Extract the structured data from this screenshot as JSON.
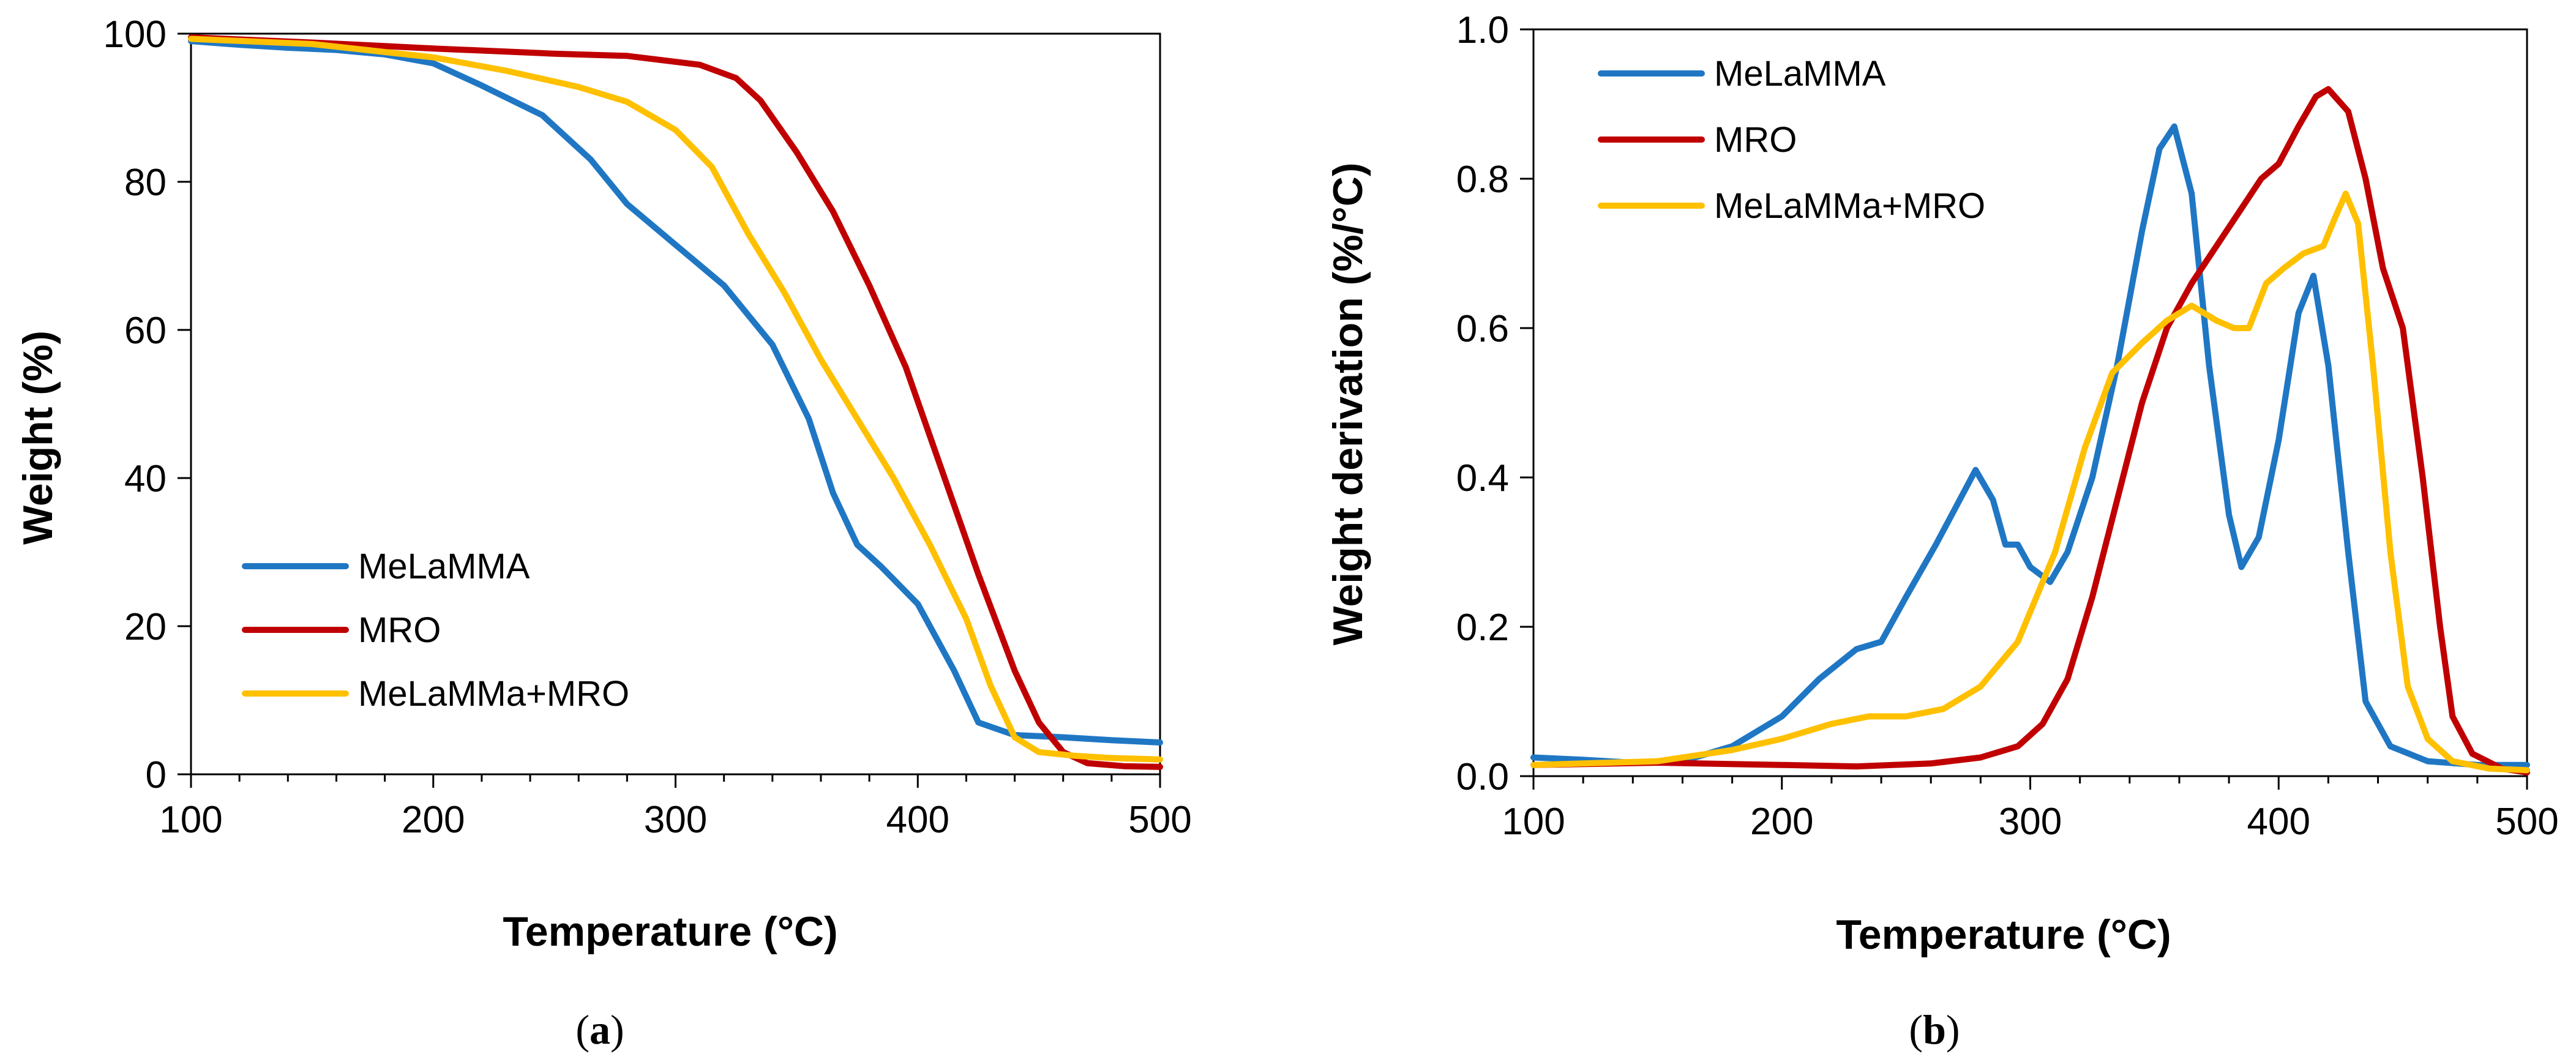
{
  "chart_data": [
    {
      "id": "a",
      "type": "line",
      "caption_letter": "a",
      "title": "",
      "xlabel": "Temperature (°C)",
      "ylabel": "Weight (%)",
      "xlim": [
        100,
        500
      ],
      "ylim": [
        0,
        100
      ],
      "xticks": [
        100,
        200,
        300,
        400,
        500
      ],
      "yticks": [
        0,
        20,
        40,
        60,
        80,
        100
      ],
      "xtick_labels": [
        "100",
        "200",
        "300",
        "400",
        "500"
      ],
      "ytick_labels": [
        "0",
        "20",
        "40",
        "60",
        "80",
        "100"
      ],
      "grid": false,
      "legend_position": "lower-left",
      "series": [
        {
          "name": "MeLaMMA",
          "color": "#1f77c4",
          "points": [
            [
              100,
              99
            ],
            [
              120,
              98.5
            ],
            [
              140,
              98.1
            ],
            [
              160,
              97.8
            ],
            [
              180,
              97.2
            ],
            [
              200,
              96
            ],
            [
              220,
              93
            ],
            [
              245,
              89
            ],
            [
              265,
              83
            ],
            [
              280,
              77
            ],
            [
              300,
              71.5
            ],
            [
              320,
              66
            ],
            [
              340,
              58
            ],
            [
              355,
              48
            ],
            [
              365,
              38
            ],
            [
              375,
              31
            ],
            [
              385,
              28
            ],
            [
              400,
              23
            ],
            [
              415,
              14
            ],
            [
              425,
              7
            ],
            [
              440,
              5.3
            ],
            [
              460,
              5
            ],
            [
              480,
              4.6
            ],
            [
              500,
              4.3
            ]
          ]
        },
        {
          "name": "MRO",
          "color": "#c00000",
          "points": [
            [
              100,
              99.5
            ],
            [
              150,
              98.8
            ],
            [
              200,
              98
            ],
            [
              250,
              97.3
            ],
            [
              280,
              97
            ],
            [
              310,
              95.8
            ],
            [
              325,
              94
            ],
            [
              335,
              91
            ],
            [
              350,
              84
            ],
            [
              365,
              76
            ],
            [
              380,
              66
            ],
            [
              395,
              55
            ],
            [
              410,
              41
            ],
            [
              425,
              27
            ],
            [
              440,
              14
            ],
            [
              450,
              7
            ],
            [
              460,
              3
            ],
            [
              470,
              1.5
            ],
            [
              485,
              1.1
            ],
            [
              500,
              1
            ]
          ]
        },
        {
          "name": "MeLaMMa+MRO",
          "color": "#ffc000",
          "points": [
            [
              100,
              99.3
            ],
            [
              150,
              98.6
            ],
            [
              200,
              96.8
            ],
            [
              230,
              95
            ],
            [
              260,
              92.8
            ],
            [
              280,
              90.8
            ],
            [
              300,
              87
            ],
            [
              315,
              82
            ],
            [
              330,
              73
            ],
            [
              345,
              65
            ],
            [
              360,
              56
            ],
            [
              375,
              48
            ],
            [
              390,
              40
            ],
            [
              405,
              31
            ],
            [
              420,
              21
            ],
            [
              430,
              12
            ],
            [
              440,
              5
            ],
            [
              450,
              3
            ],
            [
              465,
              2.5
            ],
            [
              480,
              2.2
            ],
            [
              500,
              2
            ]
          ]
        }
      ]
    },
    {
      "id": "b",
      "type": "line",
      "caption_letter": "b",
      "title": "",
      "xlabel": "Temperature (°C)",
      "ylabel": "Weight derivation (%/°C)",
      "xlim": [
        100,
        500
      ],
      "ylim": [
        0,
        1.0
      ],
      "xticks": [
        100,
        200,
        300,
        400,
        500
      ],
      "yticks": [
        0,
        0.2,
        0.4,
        0.6,
        0.8,
        1.0
      ],
      "xtick_labels": [
        "100",
        "200",
        "300",
        "400",
        "500"
      ],
      "ytick_labels": [
        "0.0",
        "0.2",
        "0.4",
        "0.6",
        "0.8",
        "1.0"
      ],
      "grid": false,
      "legend_position": "upper-left",
      "series": [
        {
          "name": "MeLaMMA",
          "color": "#1f77c4",
          "points": [
            [
              100,
              0.025
            ],
            [
              120,
              0.022
            ],
            [
              140,
              0.018
            ],
            [
              160,
              0.02
            ],
            [
              180,
              0.04
            ],
            [
              200,
              0.08
            ],
            [
              215,
              0.13
            ],
            [
              230,
              0.17
            ],
            [
              240,
              0.18
            ],
            [
              250,
              0.24
            ],
            [
              262,
              0.31
            ],
            [
              270,
              0.36
            ],
            [
              278,
              0.41
            ],
            [
              285,
              0.37
            ],
            [
              290,
              0.31
            ],
            [
              295,
              0.31
            ],
            [
              300,
              0.28
            ],
            [
              308,
              0.26
            ],
            [
              315,
              0.3
            ],
            [
              325,
              0.4
            ],
            [
              335,
              0.55
            ],
            [
              345,
              0.73
            ],
            [
              352,
              0.84
            ],
            [
              358,
              0.87
            ],
            [
              365,
              0.78
            ],
            [
              372,
              0.55
            ],
            [
              380,
              0.35
            ],
            [
              385,
              0.28
            ],
            [
              392,
              0.32
            ],
            [
              400,
              0.45
            ],
            [
              408,
              0.62
            ],
            [
              414,
              0.67
            ],
            [
              420,
              0.55
            ],
            [
              428,
              0.3
            ],
            [
              435,
              0.1
            ],
            [
              445,
              0.04
            ],
            [
              460,
              0.02
            ],
            [
              480,
              0.015
            ],
            [
              500,
              0.015
            ]
          ]
        },
        {
          "name": "MRO",
          "color": "#c00000",
          "points": [
            [
              100,
              0.015
            ],
            [
              150,
              0.018
            ],
            [
              200,
              0.015
            ],
            [
              230,
              0.013
            ],
            [
              260,
              0.017
            ],
            [
              280,
              0.025
            ],
            [
              295,
              0.04
            ],
            [
              305,
              0.07
            ],
            [
              315,
              0.13
            ],
            [
              325,
              0.24
            ],
            [
              335,
              0.37
            ],
            [
              345,
              0.5
            ],
            [
              355,
              0.6
            ],
            [
              365,
              0.66
            ],
            [
              375,
              0.71
            ],
            [
              385,
              0.76
            ],
            [
              393,
              0.8
            ],
            [
              400,
              0.82
            ],
            [
              408,
              0.87
            ],
            [
              415,
              0.91
            ],
            [
              420,
              0.92
            ],
            [
              428,
              0.89
            ],
            [
              435,
              0.8
            ],
            [
              442,
              0.68
            ],
            [
              450,
              0.6
            ],
            [
              458,
              0.4
            ],
            [
              465,
              0.2
            ],
            [
              470,
              0.08
            ],
            [
              478,
              0.03
            ],
            [
              490,
              0.01
            ],
            [
              500,
              0.005
            ]
          ]
        },
        {
          "name": "MeLaMMa+MRO",
          "color": "#ffc000",
          "points": [
            [
              100,
              0.015
            ],
            [
              150,
              0.02
            ],
            [
              180,
              0.035
            ],
            [
              200,
              0.05
            ],
            [
              220,
              0.07
            ],
            [
              235,
              0.08
            ],
            [
              250,
              0.08
            ],
            [
              265,
              0.09
            ],
            [
              280,
              0.12
            ],
            [
              295,
              0.18
            ],
            [
              310,
              0.3
            ],
            [
              322,
              0.44
            ],
            [
              333,
              0.54
            ],
            [
              345,
              0.58
            ],
            [
              355,
              0.61
            ],
            [
              365,
              0.63
            ],
            [
              375,
              0.61
            ],
            [
              382,
              0.6
            ],
            [
              388,
              0.6
            ],
            [
              395,
              0.66
            ],
            [
              402,
              0.68
            ],
            [
              410,
              0.7
            ],
            [
              418,
              0.71
            ],
            [
              423,
              0.75
            ],
            [
              427,
              0.78
            ],
            [
              432,
              0.74
            ],
            [
              438,
              0.55
            ],
            [
              445,
              0.3
            ],
            [
              452,
              0.12
            ],
            [
              460,
              0.05
            ],
            [
              470,
              0.02
            ],
            [
              485,
              0.01
            ],
            [
              500,
              0.008
            ]
          ]
        }
      ]
    }
  ]
}
